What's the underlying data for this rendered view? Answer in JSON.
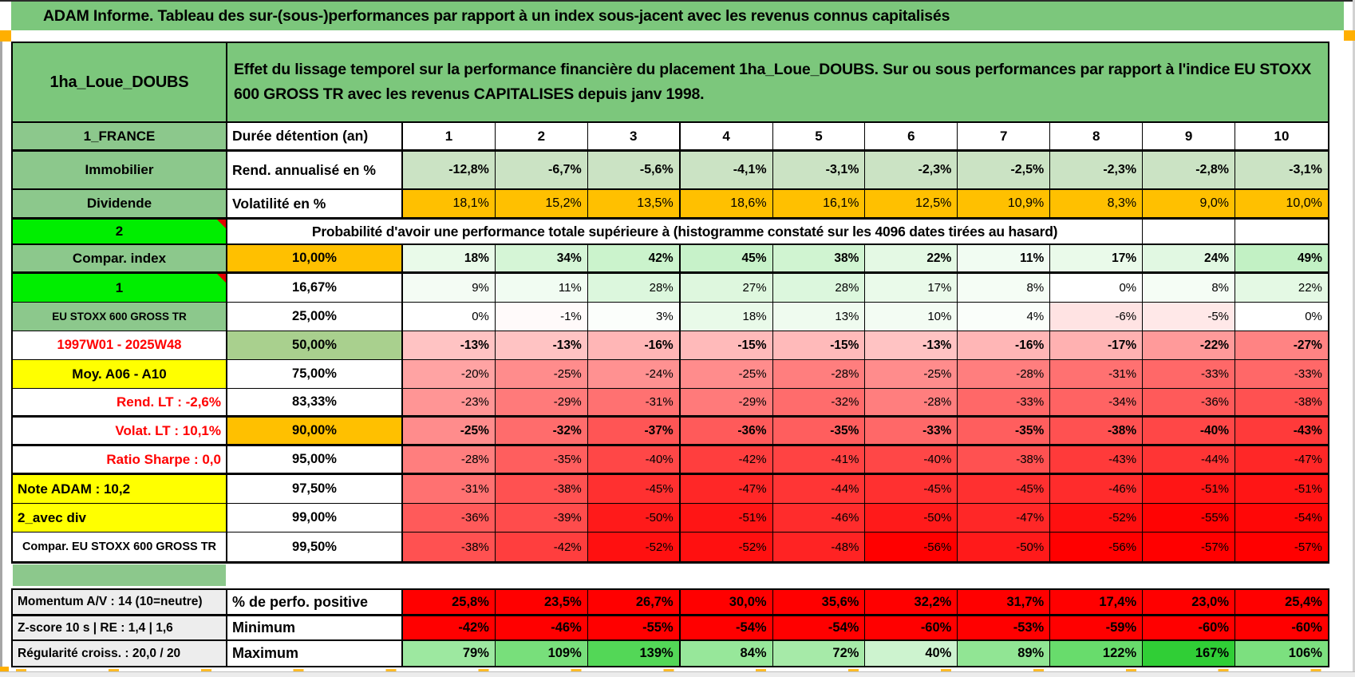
{
  "title": "ADAM Informe. Tableau des sur-(sous-)performances par rapport à un index sous-jacent avec les revenus connus capitalisés",
  "grid": {
    "product": "1ha_Loue_DOUBS",
    "description": "Effet du lissage temporel sur la performance financière du placement 1ha_Loue_DOUBS. Sur ou sous performances par rapport à l'indice EU STOXX 600 GROSS TR avec les revenus CAPITALISES depuis janv 1998.",
    "years_row": {
      "label": "1_FRANCE",
      "metric": "Durée détention (an)",
      "years": [
        "1",
        "2",
        "3",
        "4",
        "5",
        "6",
        "7",
        "8",
        "9",
        "10"
      ]
    },
    "rend_row": {
      "label": "Immobilier",
      "metric": "Rend. annualisé en %",
      "values": [
        "-12,8%",
        "-6,7%",
        "-5,6%",
        "-4,1%",
        "-3,1%",
        "-2,3%",
        "-2,5%",
        "-2,3%",
        "-2,8%",
        "-3,1%"
      ]
    },
    "vol_row": {
      "label": "Dividende",
      "metric": "Volatilité en %",
      "values": [
        "18,1%",
        "15,2%",
        "13,5%",
        "18,6%",
        "16,1%",
        "12,5%",
        "10,9%",
        "8,3%",
        "9,0%",
        "10,0%"
      ]
    },
    "banner_row": {
      "label": "2",
      "text": "Probabilité d'avoir une performance totale supérieure à (histogramme constaté sur les 4096 dates tirées au hasard)"
    },
    "prob_rows": [
      {
        "label": "Compar. index",
        "label_style": "green",
        "threshold": "10,00%",
        "threshold_style": "orange",
        "bold": true,
        "values": [
          "18%",
          "34%",
          "42%",
          "45%",
          "38%",
          "22%",
          "11%",
          "17%",
          "24%",
          "49%"
        ]
      },
      {
        "label": "1",
        "label_style": "bright",
        "comment": true,
        "threshold": "16,67%",
        "threshold_style": "white",
        "bold": false,
        "values": [
          "9%",
          "11%",
          "28%",
          "27%",
          "28%",
          "17%",
          "8%",
          "0%",
          "8%",
          "22%"
        ]
      },
      {
        "label": "EU STOXX 600 GROSS TR",
        "label_style": "green-small",
        "threshold": "25,00%",
        "threshold_style": "white",
        "bold": false,
        "values": [
          "0%",
          "-1%",
          "3%",
          "18%",
          "13%",
          "10%",
          "4%",
          "-6%",
          "-5%",
          "0%"
        ]
      },
      {
        "label": "1997W01 - 2025W48",
        "label_style": "red-center",
        "threshold": "50,00%",
        "threshold_style": "green",
        "bold": true,
        "values": [
          "-13%",
          "-13%",
          "-16%",
          "-15%",
          "-15%",
          "-13%",
          "-16%",
          "-17%",
          "-22%",
          "-27%"
        ]
      },
      {
        "label": "Moy. A06 - A10",
        "label_style": "yellow-center",
        "threshold": "75,00%",
        "threshold_style": "white",
        "bold": false,
        "values": [
          "-20%",
          "-25%",
          "-24%",
          "-25%",
          "-28%",
          "-25%",
          "-28%",
          "-31%",
          "-33%",
          "-33%"
        ]
      },
      {
        "label": "Rend. LT :   -2,6%",
        "label_style": "red-right",
        "threshold": "83,33%",
        "threshold_style": "white",
        "bold": false,
        "values": [
          "-23%",
          "-29%",
          "-31%",
          "-29%",
          "-32%",
          "-28%",
          "-33%",
          "-34%",
          "-36%",
          "-38%"
        ]
      },
      {
        "label": "Volat. LT :   10,1%",
        "label_style": "red-right",
        "threshold": "90,00%",
        "threshold_style": "orange",
        "bold": true,
        "values": [
          "-25%",
          "-32%",
          "-37%",
          "-36%",
          "-35%",
          "-33%",
          "-35%",
          "-38%",
          "-40%",
          "-43%"
        ]
      },
      {
        "label": "Ratio Sharpe :   0,0",
        "label_style": "red-right",
        "threshold": "95,00%",
        "threshold_style": "white",
        "bold": false,
        "values": [
          "-28%",
          "-35%",
          "-40%",
          "-42%",
          "-41%",
          "-40%",
          "-38%",
          "-43%",
          "-44%",
          "-47%"
        ]
      },
      {
        "label": "Note ADAM : 10,2",
        "label_style": "yellow-left",
        "threshold": "97,50%",
        "threshold_style": "white",
        "bold": false,
        "values": [
          "-31%",
          "-38%",
          "-45%",
          "-47%",
          "-44%",
          "-45%",
          "-45%",
          "-46%",
          "-51%",
          "-51%"
        ]
      },
      {
        "label": "2_avec div",
        "label_style": "yellow-left",
        "threshold": "99,00%",
        "threshold_style": "white",
        "bold": false,
        "values": [
          "-36%",
          "-39%",
          "-50%",
          "-51%",
          "-46%",
          "-50%",
          "-47%",
          "-52%",
          "-55%",
          "-54%"
        ]
      },
      {
        "label": "Compar. EU STOXX 600 GROSS TR",
        "label_style": "white-small",
        "threshold": "99,50%",
        "threshold_style": "white",
        "bold": false,
        "values": [
          "-38%",
          "-42%",
          "-52%",
          "-52%",
          "-48%",
          "-56%",
          "-50%",
          "-56%",
          "-57%",
          "-57%"
        ]
      }
    ],
    "footer_rows": [
      {
        "label": "Momentum A/V : 14 (10=neutre)",
        "metric": "% de perfo. positive",
        "cell_style": "solid-red",
        "values": [
          "25,8%",
          "23,5%",
          "26,7%",
          "30,0%",
          "35,6%",
          "32,2%",
          "31,7%",
          "17,4%",
          "23,0%",
          "25,4%"
        ]
      },
      {
        "label": "Z-score 10 s | RE : 1,4 | 1,6",
        "metric": "Minimum",
        "cell_style": "solid-red",
        "values": [
          "-42%",
          "-46%",
          "-55%",
          "-54%",
          "-54%",
          "-60%",
          "-53%",
          "-59%",
          "-60%",
          "-60%"
        ]
      },
      {
        "label": "Régularité croiss. : 20,0 / 20",
        "metric": "Maximum",
        "cell_style": "green-scale",
        "values": [
          "79%",
          "109%",
          "139%",
          "84%",
          "72%",
          "40%",
          "89%",
          "122%",
          "167%",
          "106%"
        ]
      }
    ]
  },
  "colors": {
    "green_header": "#7CC77C",
    "green_label": "#8CC88C",
    "green_bright": "#00EE00",
    "green_50": "#A9D08E",
    "green_rend": "#CBE3C4",
    "orange": "#FFC000",
    "yellow": "#FFFF00",
    "red": "#FF0000",
    "gray_label": "#EDEDED",
    "marker_orange": "#FFAF00"
  }
}
